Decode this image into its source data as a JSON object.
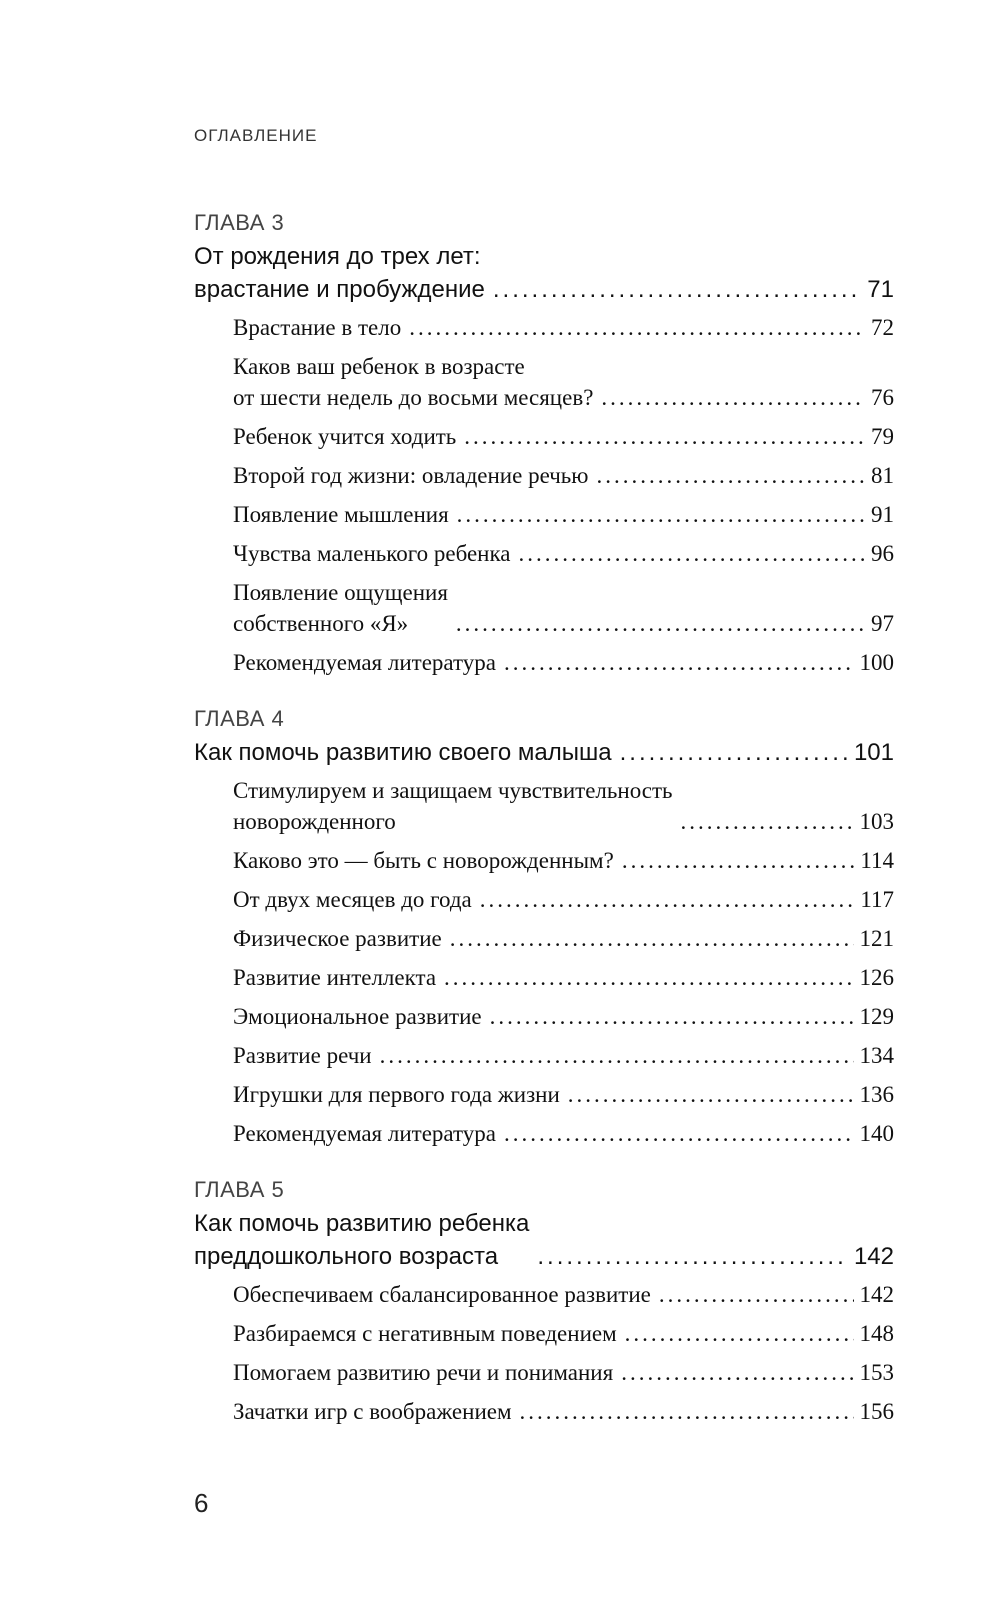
{
  "header": "ОГЛАВЛЕНИЕ",
  "chapters": [
    {
      "label": "ГЛАВА 3",
      "title": "От рождения до трех лет:\nврастание и пробуждение",
      "page": "71",
      "sections": [
        {
          "title": "Врастание в тело",
          "page": "72"
        },
        {
          "title": "Каков ваш ребенок в возрасте\nот шести недель до восьми месяцев?",
          "page": "76"
        },
        {
          "title": "Ребенок учится ходить",
          "page": "79"
        },
        {
          "title": "Второй год жизни: овладение речью",
          "page": "81"
        },
        {
          "title": "Появление мышления",
          "page": "91"
        },
        {
          "title": "Чувства маленького ребенка",
          "page": "96"
        },
        {
          "title": "Появление ощущения\nсобственного «Я»",
          "page": "97"
        },
        {
          "title": "Рекомендуемая литература",
          "page": "100"
        }
      ]
    },
    {
      "label": "ГЛАВА 4",
      "title": "Как помочь развитию своего малыша",
      "page": "101",
      "sections": [
        {
          "title": "Стимулируем и защищаем чувствительность\nноворожденного",
          "page": "103"
        },
        {
          "title": "Каково это — быть с новорожденным?",
          "page": "114"
        },
        {
          "title": "От двух месяцев до года",
          "page": "117"
        },
        {
          "title": "Физическое развитие",
          "page": "121"
        },
        {
          "title": "Развитие интеллекта",
          "page": "126"
        },
        {
          "title": "Эмоциональное развитие",
          "page": "129"
        },
        {
          "title": "Развитие речи",
          "page": "134"
        },
        {
          "title": "Игрушки для первого года жизни",
          "page": "136"
        },
        {
          "title": "Рекомендуемая литература",
          "page": "140"
        }
      ]
    },
    {
      "label": "ГЛАВА 5",
      "title": "Как помочь развитию ребенка\nпреддошкольного возраста",
      "page": "142",
      "sections": [
        {
          "title": "Обеспечиваем сбалансированное развитие",
          "page": "142"
        },
        {
          "title": "Разбираемся с негативным поведением",
          "page": "148"
        },
        {
          "title": "Помогаем развитию речи и понимания",
          "page": "153"
        },
        {
          "title": "Зачатки игр с воображением",
          "page": "156"
        }
      ]
    }
  ],
  "page_number": "6"
}
